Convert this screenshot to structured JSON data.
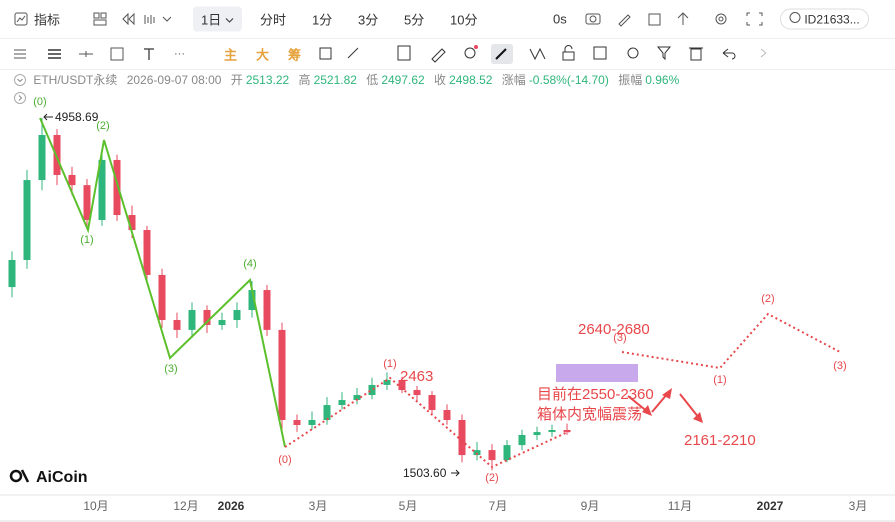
{
  "toolbar": {
    "indicator": "指标",
    "period": "1日",
    "periods": [
      "分时",
      "1分",
      "3分",
      "5分",
      "10分"
    ],
    "countdown": "0s",
    "account": "ID21633..."
  },
  "drawing_toolbar": {
    "main": "主",
    "big": "大",
    "chips": "筹"
  },
  "info_bar": {
    "symbol": "ETH/USDT永续",
    "time": "2026-09-07 08:00",
    "open_label": "开",
    "open": "2513.22",
    "high_label": "高",
    "high": "2521.82",
    "low_label": "低",
    "low": "2497.62",
    "close_label": "收",
    "close": "2498.52",
    "change_label": "涨幅",
    "change": "-0.58%(-14.70)",
    "amplitude_label": "振幅",
    "amplitude": "0.96%"
  },
  "chart_data": {
    "type": "candlestick",
    "up_color": "#2fb67c",
    "down_color": "#e84a5f",
    "ylim": [
      1280,
      5410
    ],
    "open": [
      3300,
      3566,
      4350,
      4792,
      4400,
      4300,
      3958,
      4547,
      4007,
      3860,
      3419,
      2977,
      2880,
      3075,
      2928,
      2977,
      3075,
      3271,
      2880,
      1996,
      1947,
      1996,
      2143,
      2192,
      2241,
      2340,
      2389,
      2290,
      2241,
      2094,
      1996,
      1652,
      1701,
      1603,
      1750,
      1849,
      1878,
      1898
    ],
    "high": [
      3650,
      4450,
      4958.69,
      4850,
      4480,
      4360,
      4640,
      4600,
      4100,
      3900,
      3480,
      3050,
      3150,
      3120,
      3050,
      3150,
      3360,
      3320,
      2950,
      2050,
      2080,
      2220,
      2270,
      2310,
      2410,
      2463,
      2420,
      2330,
      2280,
      2150,
      2050,
      1780,
      1760,
      1800,
      1900,
      1930,
      1950,
      1960
    ],
    "low": [
      3200,
      3480,
      4250,
      4300,
      4200,
      3880,
      3900,
      3950,
      3780,
      3350,
      2900,
      2800,
      2800,
      2850,
      2880,
      2900,
      3000,
      2820,
      1900,
      1880,
      1900,
      1950,
      2100,
      2150,
      2200,
      2290,
      2260,
      2180,
      2050,
      1950,
      1580,
      1600,
      1503.6,
      1580,
      1700,
      1800,
      1830,
      1850
    ],
    "close": [
      3566,
      4350,
      4792,
      4400,
      4300,
      3958,
      4547,
      4007,
      3860,
      3419,
      2977,
      2880,
      3075,
      2928,
      2977,
      3075,
      3271,
      2880,
      1996,
      1947,
      1996,
      2143,
      2192,
      2241,
      2340,
      2389,
      2290,
      2241,
      2094,
      1996,
      1652,
      1701,
      1603,
      1750,
      1849,
      1878,
      1898,
      1878
    ],
    "x_axis_labels": [
      "10月",
      "12月",
      "2026",
      "3月",
      "5月",
      "7月",
      "9月",
      "11月",
      "2027",
      "3月"
    ]
  },
  "annotations": {
    "high_price": "4958.69",
    "low_price": "1503.60",
    "level_2463": "2463",
    "target_up": "2640-2680",
    "current_range": "目前在2550-2360",
    "box_note": "箱体内宽幅震荡",
    "target_down": "2161-2210",
    "green_wave": [
      "(0)",
      "(1)",
      "(2)",
      "(3)",
      "(4)"
    ],
    "red_wave": [
      "(0)",
      "(1)",
      "(2)",
      "(3)",
      "(1)",
      "(2)",
      "(3)"
    ]
  },
  "logo": "AiCoin"
}
